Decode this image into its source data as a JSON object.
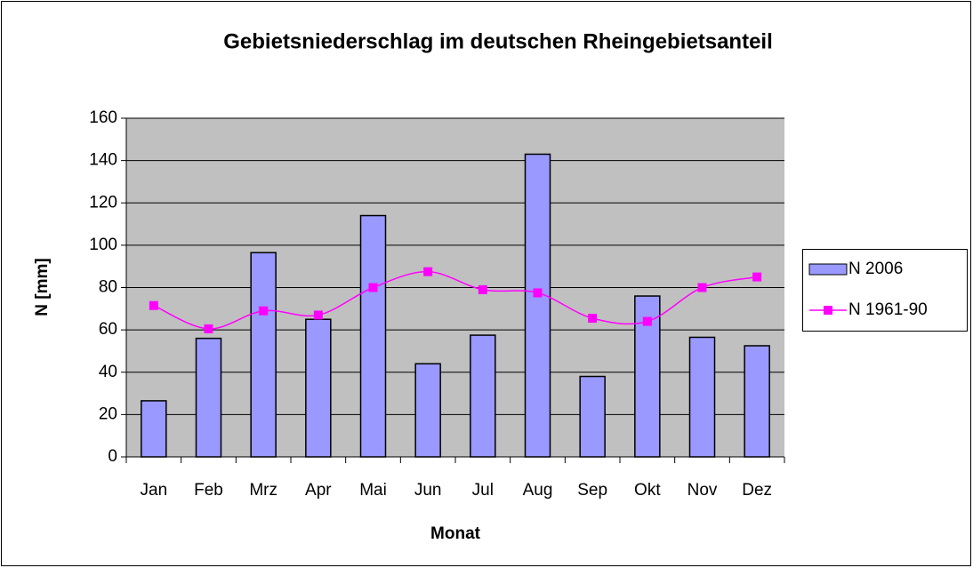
{
  "chart_data": {
    "type": "bar_line",
    "title": "Gebietsniederschlag im deutschen Rheingebietsanteil",
    "x_label": "Monat",
    "y_label": "N [mm]",
    "categories": [
      "Jan",
      "Feb",
      "Mrz",
      "Apr",
      "Mai",
      "Jun",
      "Jul",
      "Aug",
      "Sep",
      "Okt",
      "Nov",
      "Dez"
    ],
    "series": [
      {
        "name": "N 2006",
        "type": "bar",
        "color": "#9999ff",
        "values": [
          26.5,
          56,
          96.5,
          65,
          114,
          44,
          57.5,
          143,
          38,
          76,
          56.5,
          52.5
        ]
      },
      {
        "name": "N 1961-90",
        "type": "line",
        "color": "#ff00ff",
        "values": [
          71.5,
          60.5,
          69,
          67,
          80,
          87.5,
          79,
          77.5,
          65.5,
          64,
          80,
          85
        ]
      }
    ],
    "ylim": [
      0,
      160
    ],
    "yticks": [
      0,
      20,
      40,
      60,
      80,
      100,
      120,
      140,
      160
    ],
    "grid": true,
    "legend": "right"
  }
}
